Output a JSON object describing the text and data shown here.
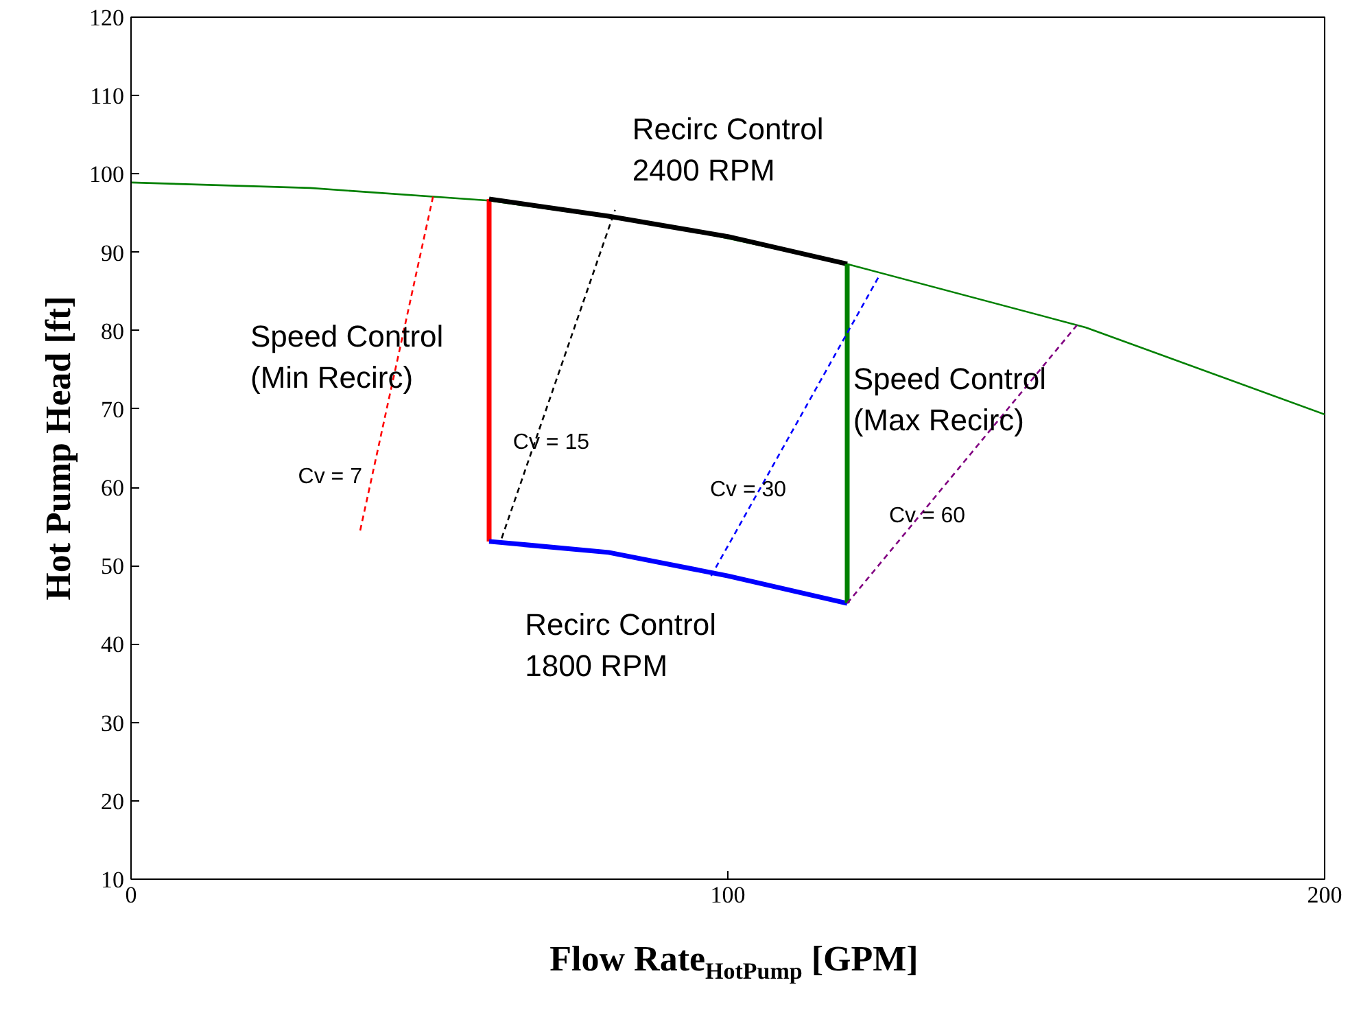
{
  "chart_data": {
    "type": "line",
    "xlabel": "Flow Rate$_{HotPump}$ [GPM]",
    "ylabel": "Hot Pump Head [ft]",
    "xlim": [
      0,
      200
    ],
    "ylim": [
      10,
      120
    ],
    "xticks": [
      0,
      100,
      200
    ],
    "yticks": [
      10,
      20,
      30,
      40,
      50,
      60,
      70,
      80,
      90,
      100,
      110,
      120
    ],
    "grid": false,
    "marker": "none",
    "series": [
      {
        "color": "#008000",
        "x": [
          0,
          30,
          60,
          90,
          120,
          160,
          200
        ],
        "values": [
          98.9,
          98.2,
          96.6,
          93.4,
          88.5,
          80.4,
          69.3
        ],
        "line_style": "solid"
      },
      {
        "color": "#ff0000",
        "x": [
          60,
          60
        ],
        "values": [
          53.1,
          96.8
        ],
        "line_style": "solid"
      },
      {
        "color": "#000000",
        "x": [
          60,
          80,
          100,
          120
        ],
        "values": [
          96.8,
          94.6,
          92.0,
          88.5
        ],
        "line_style": "solid"
      },
      {
        "color": "#0000ff",
        "x": [
          60,
          80,
          100,
          120
        ],
        "values": [
          53.1,
          51.7,
          48.7,
          45.2
        ],
        "line_style": "solid"
      },
      {
        "color": "#008000",
        "x": [
          120,
          120
        ],
        "values": [
          45.2,
          88.5
        ],
        "line_style": "solid"
      },
      {
        "color": "#ff0000",
        "x": [
          38.4,
          50.6
        ],
        "values": [
          54.5,
          97.1
        ],
        "line_style": "dashed"
      },
      {
        "color": "#000000",
        "x": [
          62.1,
          81.1
        ],
        "values": [
          53.5,
          95.4
        ],
        "line_style": "dashed"
      },
      {
        "color": "#0000ff",
        "x": [
          97.2,
          125.3
        ],
        "values": [
          48.7,
          86.9
        ],
        "line_style": "dashed"
      },
      {
        "color": "#800080",
        "x": [
          120,
          158.6
        ],
        "values": [
          45.2,
          80.8
        ],
        "line_style": "dashed"
      }
    ],
    "annotations": [
      "Recirc Control\n2400 RPM",
      "Speed Control\n(Min Recirc)",
      "Speed Control\n(Max Recirc)",
      "Recirc Control\n1800 RPM",
      "Cv = 7",
      "Cv = 15",
      "Cv = 30",
      "Cv = 60"
    ]
  }
}
